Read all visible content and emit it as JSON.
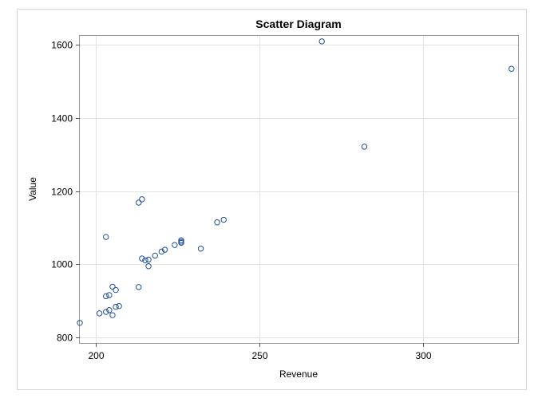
{
  "chart_data": {
    "type": "scatter",
    "title": "Scatter Diagram",
    "xlabel": "Revenue",
    "ylabel": "Value",
    "xlim": [
      195,
      329
    ],
    "ylim": [
      785,
      1625
    ],
    "xticks": [
      200,
      250,
      300
    ],
    "yticks": [
      800,
      1000,
      1200,
      1400,
      1600
    ],
    "grid": true,
    "marker": "circle-open",
    "point_color": "#1f4f9c",
    "series": [
      {
        "points": [
          {
            "x": 195,
            "y": 840
          },
          {
            "x": 201,
            "y": 866
          },
          {
            "x": 203,
            "y": 870
          },
          {
            "x": 203,
            "y": 913
          },
          {
            "x": 203,
            "y": 1075
          },
          {
            "x": 204,
            "y": 875
          },
          {
            "x": 204,
            "y": 916
          },
          {
            "x": 205,
            "y": 861
          },
          {
            "x": 205,
            "y": 939
          },
          {
            "x": 206,
            "y": 884
          },
          {
            "x": 206,
            "y": 930
          },
          {
            "x": 207,
            "y": 886
          },
          {
            "x": 213,
            "y": 938
          },
          {
            "x": 213,
            "y": 1169
          },
          {
            "x": 214,
            "y": 1016
          },
          {
            "x": 214,
            "y": 1178
          },
          {
            "x": 215,
            "y": 1011
          },
          {
            "x": 216,
            "y": 995
          },
          {
            "x": 216,
            "y": 1013
          },
          {
            "x": 218,
            "y": 1024
          },
          {
            "x": 220,
            "y": 1035
          },
          {
            "x": 221,
            "y": 1040
          },
          {
            "x": 224,
            "y": 1053
          },
          {
            "x": 226,
            "y": 1059
          },
          {
            "x": 226,
            "y": 1062
          },
          {
            "x": 226,
            "y": 1066
          },
          {
            "x": 232,
            "y": 1043
          },
          {
            "x": 237,
            "y": 1115
          },
          {
            "x": 239,
            "y": 1122
          },
          {
            "x": 269,
            "y": 1610
          },
          {
            "x": 282,
            "y": 1322
          },
          {
            "x": 327,
            "y": 1535
          }
        ]
      }
    ]
  }
}
